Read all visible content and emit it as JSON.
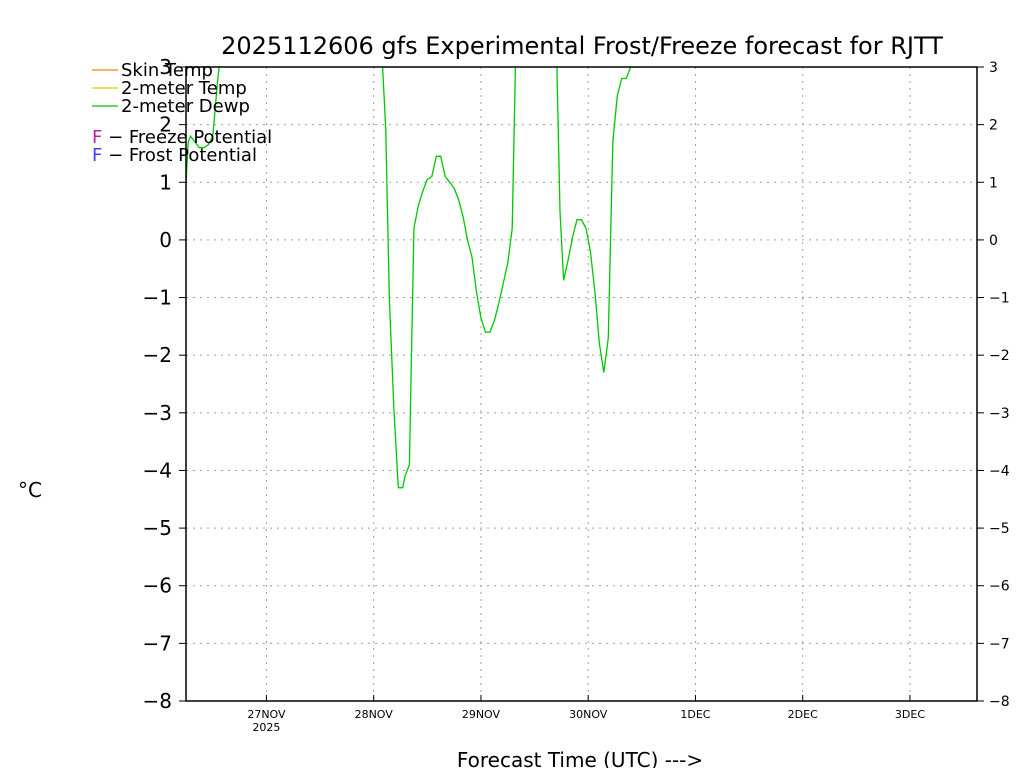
{
  "chart_data": {
    "type": "line",
    "title": "2025112606 gfs Experimental Frost/Freeze forecast for RJTT",
    "xlabel": "Forecast Time (UTC) --->",
    "ylabel": "°C",
    "ylim": [
      -8,
      3
    ],
    "y_ticks": [
      3,
      2,
      1,
      0,
      -1,
      -2,
      -3,
      -4,
      -5,
      -6,
      -7,
      -8
    ],
    "y_tick_labels": [
      "3",
      "2",
      "1",
      "0",
      "−1",
      "−2",
      "−3",
      "−4",
      "−5",
      "−6",
      "−7",
      "−8"
    ],
    "xlim": [
      0,
      177
    ],
    "x_ticks": [
      18,
      42,
      66,
      90,
      114,
      138,
      162
    ],
    "x_tick_labels": [
      "27NOV",
      "28NOV",
      "29NOV",
      "30NOV",
      "1DEC",
      "2DEC",
      "3DEC"
    ],
    "x_sublabel": "2025",
    "grid": true,
    "legend": [
      {
        "label": "Skin Temp",
        "color": "#ff8000"
      },
      {
        "label": "2-meter Temp",
        "color": "#e6c800"
      },
      {
        "label": "2-meter Dewp",
        "color": "#00c800"
      }
    ],
    "annotations": [
      {
        "glyph": "F",
        "text": " − Freeze Potential",
        "color": "#c020a0"
      },
      {
        "glyph": "F",
        "text": " − Frost Potential",
        "color": "#4040ff"
      }
    ],
    "series": [
      {
        "name": "2-meter Dewp",
        "color": "#00c800",
        "segments": [
          {
            "x": [
              0,
              0.5,
              1,
              2,
              3,
              4,
              5,
              6,
              7,
              7.4
            ],
            "y": [
              1.0,
              1.7,
              1.8,
              1.7,
              1.6,
              1.6,
              1.65,
              1.8,
              2.7,
              3.0
            ]
          },
          {
            "x": [
              44,
              44.7,
              45.5,
              46.5,
              47.5,
              48.5,
              49,
              50,
              51,
              52,
              53,
              54,
              55,
              56,
              57,
              58,
              59,
              60,
              61,
              62,
              63,
              64,
              65,
              66,
              67,
              68,
              69,
              70,
              71,
              72,
              73,
              73.7
            ],
            "y": [
              3.0,
              1.9,
              -1.0,
              -2.9,
              -4.3,
              -4.3,
              -4.1,
              -3.9,
              0.2,
              0.6,
              0.85,
              1.05,
              1.1,
              1.45,
              1.45,
              1.1,
              1.0,
              0.9,
              0.7,
              0.4,
              0.0,
              -0.3,
              -0.9,
              -1.35,
              -1.6,
              -1.6,
              -1.4,
              -1.1,
              -0.75,
              -0.4,
              0.2,
              3.0
            ]
          },
          {
            "x": [
              83,
              83.7,
              84.5,
              85.5,
              86.5,
              87.5,
              88.5,
              89.5,
              90.5,
              91.5,
              92.5,
              93.5,
              94.5,
              95.5,
              96.5,
              97.5,
              98.5,
              99.5,
              100.5,
              101.5
            ],
            "y": [
              3.0,
              0.5,
              -0.7,
              -0.35,
              0.05,
              0.35,
              0.35,
              0.2,
              -0.2,
              -0.9,
              -1.8,
              -2.3,
              -1.7,
              1.7,
              2.5,
              2.8,
              2.8,
              3.0,
              3.0,
              3.0
            ]
          }
        ]
      }
    ]
  }
}
